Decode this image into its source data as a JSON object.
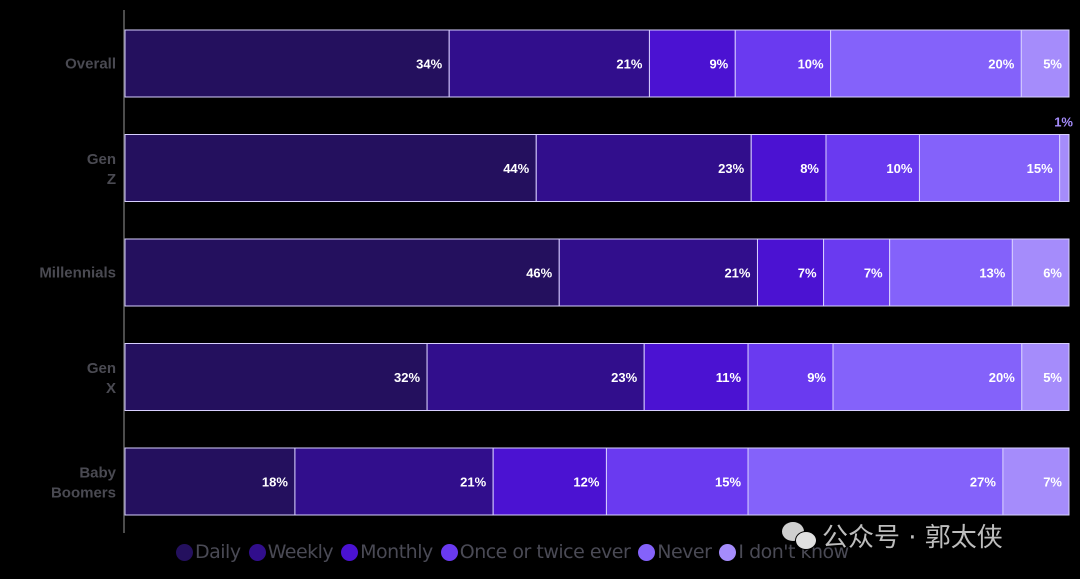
{
  "chart_data": {
    "type": "bar",
    "orientation": "horizontal",
    "stacked": true,
    "title": "",
    "xlabel": "",
    "ylabel": "",
    "categories": [
      "Overall",
      "Gen Z",
      "Millennials",
      "Gen X",
      "Baby Boomers"
    ],
    "series": [
      {
        "name": "Daily",
        "color": "#24105e",
        "values": [
          34,
          44,
          46,
          32,
          18
        ]
      },
      {
        "name": "Weekly",
        "color": "#310e8c",
        "values": [
          21,
          23,
          21,
          23,
          21
        ]
      },
      {
        "name": "Monthly",
        "color": "#4b12d2",
        "values": [
          9,
          8,
          7,
          11,
          12
        ]
      },
      {
        "name": "Once or twice ever",
        "color": "#6a3af0",
        "values": [
          10,
          10,
          7,
          9,
          15
        ]
      },
      {
        "name": "Never",
        "color": "#8462fa",
        "values": [
          20,
          15,
          13,
          20,
          27
        ]
      },
      {
        "name": "I don't know",
        "color": "#a58cfb",
        "values": [
          5,
          1,
          6,
          5,
          7
        ]
      }
    ],
    "value_suffix": "%",
    "legend_position": "bottom",
    "grid": false
  },
  "watermark": "公众号 · 郭太侠"
}
